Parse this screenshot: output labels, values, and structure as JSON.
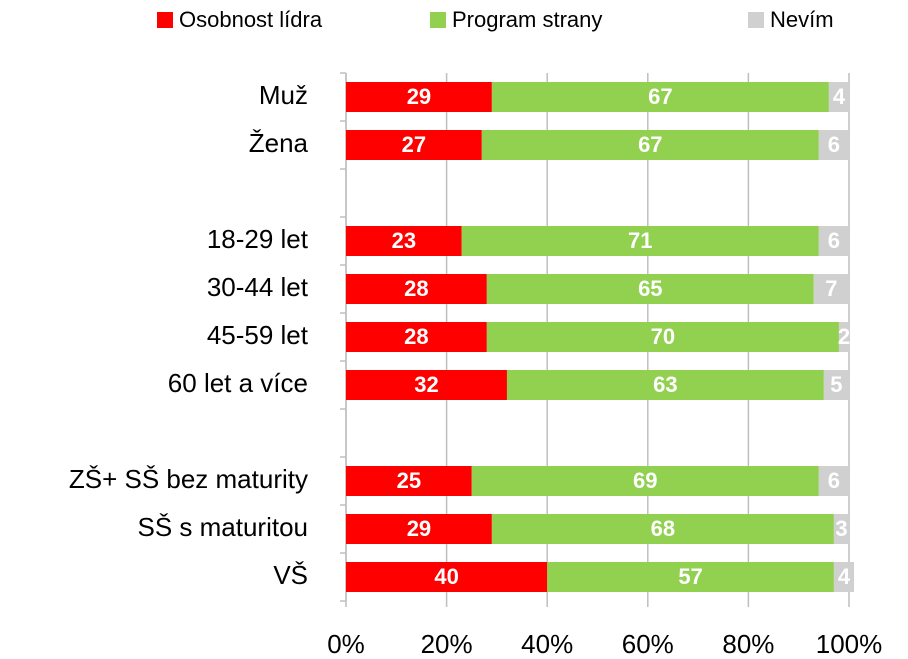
{
  "chart_data": {
    "type": "stacked_bar_horizontal",
    "categories": [
      "Muž",
      "Žena",
      null,
      "18-29 let",
      "30-44 let",
      "45-59 let",
      "60 let a více",
      null,
      "ZŠ+ SŠ bez maturity",
      "SŠ s maturitou",
      "VŠ"
    ],
    "series": [
      {
        "name": "Osobnost lídra",
        "color": "#ff0000",
        "values": [
          29,
          27,
          null,
          23,
          28,
          28,
          32,
          null,
          25,
          29,
          40
        ]
      },
      {
        "name": "Program strany",
        "color": "#92d050",
        "values": [
          67,
          67,
          null,
          71,
          65,
          70,
          63,
          null,
          69,
          68,
          57
        ]
      },
      {
        "name": "Nevím",
        "color": "#d0d0d0",
        "values": [
          4,
          6,
          null,
          6,
          7,
          2,
          5,
          null,
          6,
          3,
          4
        ]
      }
    ],
    "xlim": [
      0,
      100
    ],
    "xticks": [
      {
        "value": 0,
        "label": "0%"
      },
      {
        "value": 20,
        "label": "20%"
      },
      {
        "value": 40,
        "label": "40%"
      },
      {
        "value": 60,
        "label": "60%"
      },
      {
        "value": 80,
        "label": "80%"
      },
      {
        "value": 100,
        "label": "100%"
      }
    ],
    "grid": true,
    "legend": "top"
  }
}
